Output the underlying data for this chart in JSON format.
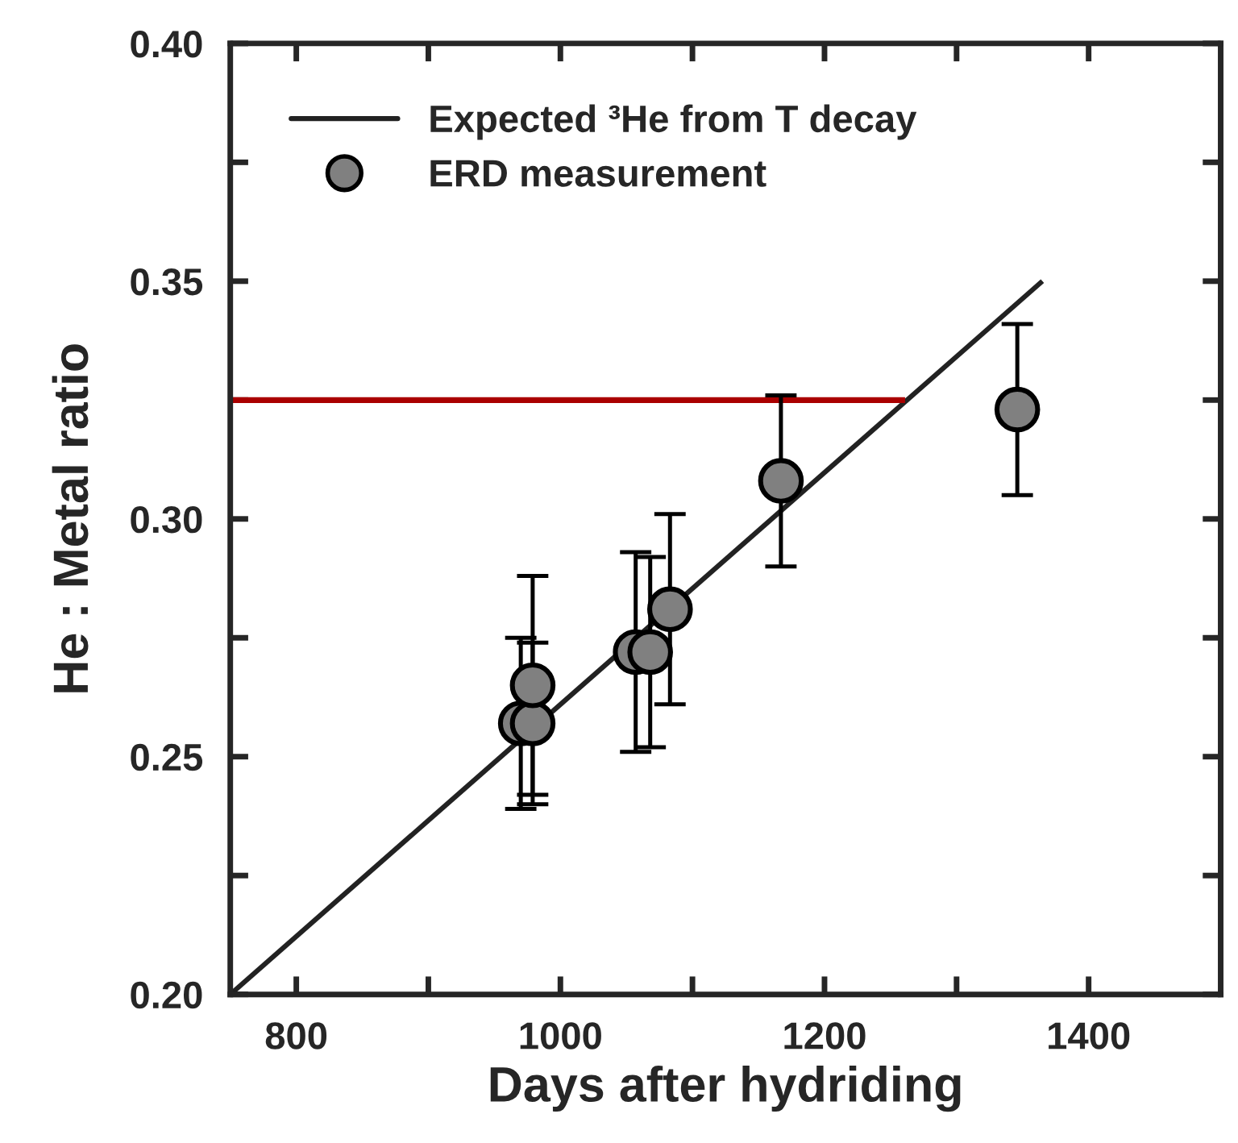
{
  "chart_data": {
    "type": "scatter",
    "xlabel": "Days after hydriding",
    "ylabel": "He : Metal ratio",
    "xlim": [
      750,
      1500
    ],
    "xticks": [
      800,
      {
        "value": 900,
        "label": null
      },
      1000,
      {
        "value": 1100,
        "label": null
      },
      1200,
      {
        "value": 1300,
        "label": null
      },
      1400
    ],
    "ylim": [
      0.2,
      0.4
    ],
    "yticks": [
      {
        "value": 0.2,
        "label": "0.20"
      },
      {
        "value": 0.225,
        "label": null
      },
      0.25,
      {
        "value": 0.275,
        "label": null
      },
      {
        "value": 0.3,
        "label": "0.30"
      },
      {
        "value": 0.325,
        "label": null
      },
      0.35,
      {
        "value": 0.375,
        "label": null
      },
      {
        "value": 0.4,
        "label": "0.40"
      }
    ],
    "grid": false,
    "legend": "top left",
    "series": [
      {
        "type": "line",
        "name": "Expected ³He from T decay",
        "color": "#222222",
        "line_style": "solid",
        "marker": "none",
        "x": [
          750,
          1365
        ],
        "values": [
          0.2,
          0.35
        ]
      },
      {
        "type": "line",
        "color": "#aa0000",
        "line_style": "solid",
        "marker": "none",
        "x": [
          750,
          1261
        ],
        "values": [
          0.325,
          0.325
        ]
      },
      {
        "name": "ERD measurement",
        "color": "#808080",
        "marker": "circle",
        "x": [
          970,
          979,
          979,
          1057,
          1068,
          1083,
          1167,
          1346
        ],
        "values": [
          0.257,
          0.257,
          0.265,
          0.272,
          0.272,
          0.281,
          0.308,
          0.323
        ],
        "errors": [
          0.018,
          0.017,
          0.023,
          0.021,
          0.02,
          0.02,
          0.018,
          0.018
        ]
      }
    ]
  }
}
